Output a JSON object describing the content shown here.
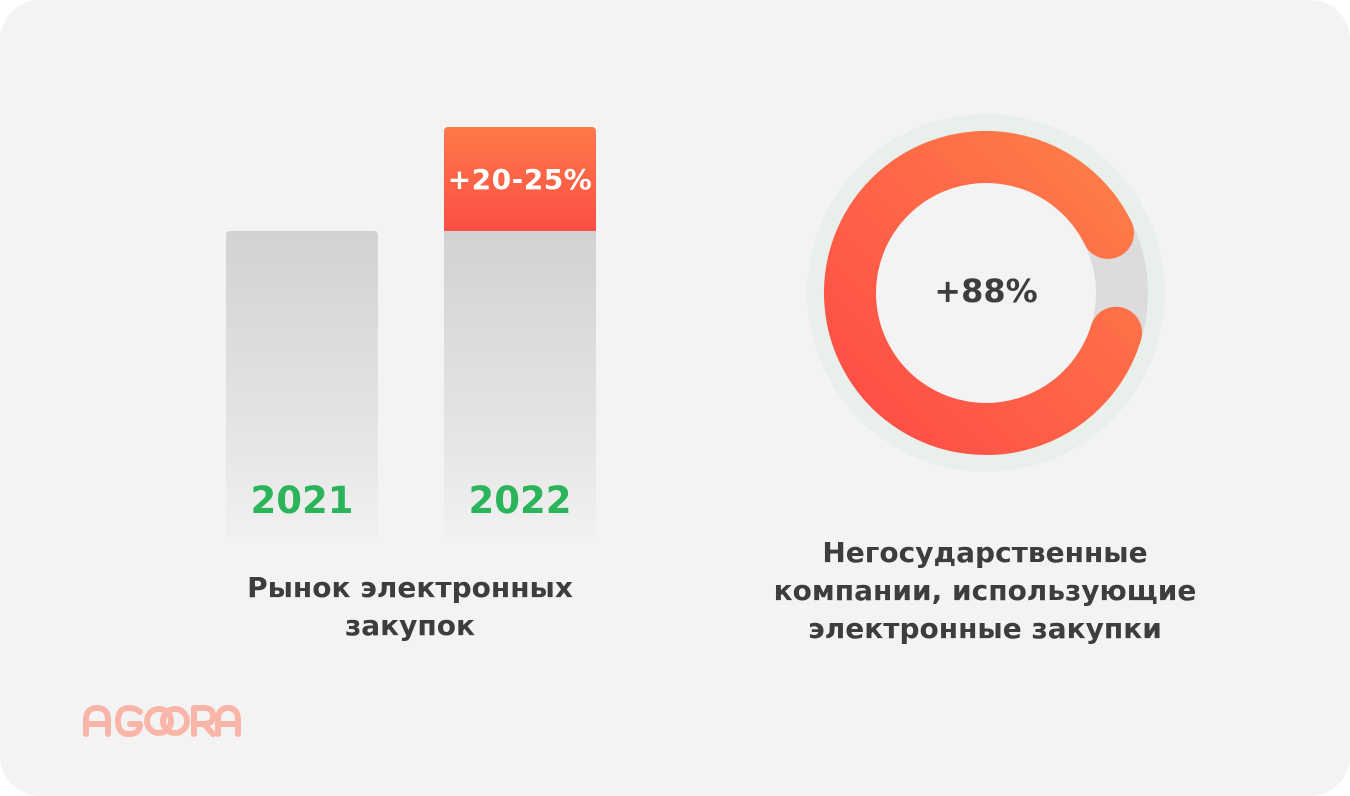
{
  "chart_data": [
    {
      "type": "bar",
      "categories": [
        "2021",
        "2022"
      ],
      "values": [
        100,
        122.5
      ],
      "increase_label": "+20-25%",
      "caption": [
        "Рынок электронных",
        "закупок"
      ],
      "colors": {
        "base": "#d9d9d9",
        "increase": "#fd5f46",
        "year_label": "#2cb45b"
      }
    },
    {
      "type": "pie",
      "center_label": "+88%",
      "values": [
        88,
        12
      ],
      "caption": [
        "Негосударственные",
        "компании, использующие",
        "электронные закупки"
      ],
      "colors": {
        "filled": "#fd5f46",
        "remaining": "#dcdcdc",
        "halo": "#e8efeb"
      }
    }
  ],
  "logo": {
    "text": "AGORA",
    "color": "#f9b6a8"
  }
}
